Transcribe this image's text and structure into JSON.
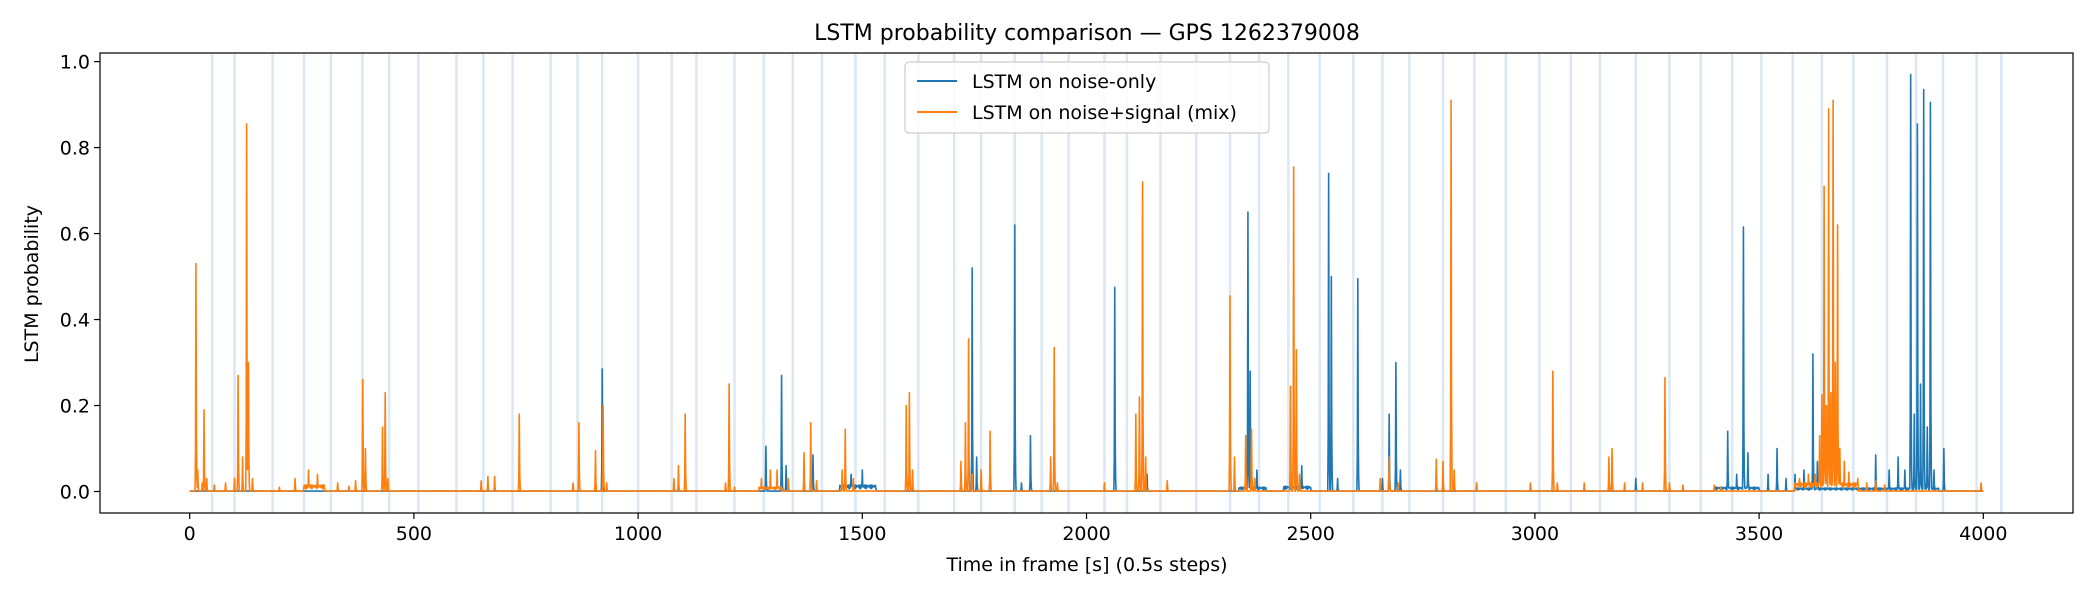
{
  "chart_data": {
    "type": "line",
    "title": "LSTM probability comparison — GPS 1262379008",
    "xlabel": "Time in frame [s] (0.5s steps)",
    "ylabel": "LSTM probability",
    "xlim": [
      -200,
      4200
    ],
    "ylim": [
      -0.05,
      1.02
    ],
    "x_ticks": [
      0,
      500,
      1000,
      1500,
      2000,
      2500,
      3000,
      3500,
      4000
    ],
    "x_tick_labels": [
      "0",
      "500",
      "1000",
      "1500",
      "2000",
      "2500",
      "3000",
      "3500",
      "4000"
    ],
    "y_ticks": [
      0.0,
      0.2,
      0.4,
      0.6,
      0.8,
      1.0
    ],
    "y_tick_labels": [
      "0.0",
      "0.2",
      "0.4",
      "0.6",
      "0.8",
      "1.0"
    ],
    "grid": false,
    "legend_position": "top-center",
    "x_range": [
      0,
      4000
    ],
    "x_step": 1,
    "baseline": 0.001,
    "shaded_bands_x": [
      50,
      100,
      185,
      255,
      315,
      385,
      445,
      510,
      595,
      655,
      720,
      805,
      865,
      920,
      1000,
      1075,
      1130,
      1215,
      1280,
      1345,
      1410,
      1485,
      1550,
      1625,
      1705,
      1765,
      1840,
      1900,
      1960,
      2040,
      2090,
      2165,
      2245,
      2320,
      2385,
      2450,
      2520,
      2595,
      2660,
      2720,
      2795,
      2865,
      2935,
      3010,
      3080,
      3145,
      3225,
      3300,
      3370,
      3440,
      3505,
      3575,
      3640,
      3710,
      3785,
      3850,
      3910,
      3985,
      4040
    ],
    "band_color": "#dbe7f2",
    "series": [
      {
        "name": "LSTM on noise-only",
        "color": "#1f77b4",
        "peaks": [
          [
            920,
            0.285
          ],
          [
            1285,
            0.105
          ],
          [
            1320,
            0.27
          ],
          [
            1330,
            0.06
          ],
          [
            1390,
            0.085
          ],
          [
            1475,
            0.04
          ],
          [
            1500,
            0.05
          ],
          [
            1745,
            0.52
          ],
          [
            1755,
            0.08
          ],
          [
            1840,
            0.62
          ],
          [
            1855,
            0.02
          ],
          [
            1875,
            0.13
          ],
          [
            2063,
            0.475
          ],
          [
            2135,
            0.04
          ],
          [
            2360,
            0.65
          ],
          [
            2365,
            0.28
          ],
          [
            2380,
            0.05
          ],
          [
            2480,
            0.06
          ],
          [
            2540,
            0.74
          ],
          [
            2546,
            0.5
          ],
          [
            2560,
            0.03
          ],
          [
            2605,
            0.495
          ],
          [
            2660,
            0.03
          ],
          [
            2675,
            0.18
          ],
          [
            2690,
            0.3
          ],
          [
            2700,
            0.05
          ],
          [
            3225,
            0.03
          ],
          [
            3430,
            0.14
          ],
          [
            3450,
            0.04
          ],
          [
            3465,
            0.615
          ],
          [
            3475,
            0.09
          ],
          [
            3520,
            0.04
          ],
          [
            3540,
            0.1
          ],
          [
            3560,
            0.03
          ],
          [
            3580,
            0.04
          ],
          [
            3600,
            0.05
          ],
          [
            3620,
            0.32
          ],
          [
            3630,
            0.07
          ],
          [
            3760,
            0.085
          ],
          [
            3790,
            0.05
          ],
          [
            3810,
            0.08
          ],
          [
            3825,
            0.05
          ],
          [
            3838,
            0.97
          ],
          [
            3846,
            0.18
          ],
          [
            3853,
            0.855
          ],
          [
            3860,
            0.25
          ],
          [
            3867,
            0.935
          ],
          [
            3875,
            0.15
          ],
          [
            3882,
            0.905
          ],
          [
            3890,
            0.05
          ],
          [
            3912,
            0.1
          ]
        ],
        "floor": [
          [
            1450,
            1530,
            0.015
          ],
          [
            2340,
            2400,
            0.01
          ],
          [
            2440,
            2500,
            0.012
          ],
          [
            3400,
            3500,
            0.01
          ],
          [
            3580,
            3900,
            0.008
          ]
        ]
      },
      {
        "name": "LSTM on noise+signal (mix)",
        "color": "#ff7f0e",
        "peaks": [
          [
            14,
            0.53
          ],
          [
            18,
            0.05
          ],
          [
            28,
            0.02
          ],
          [
            32,
            0.19
          ],
          [
            38,
            0.03
          ],
          [
            55,
            0.015
          ],
          [
            80,
            0.02
          ],
          [
            100,
            0.03
          ],
          [
            108,
            0.27
          ],
          [
            118,
            0.08
          ],
          [
            127,
            0.855
          ],
          [
            131,
            0.3
          ],
          [
            140,
            0.03
          ],
          [
            200,
            0.01
          ],
          [
            235,
            0.03
          ],
          [
            265,
            0.05
          ],
          [
            285,
            0.04
          ],
          [
            300,
            0.015
          ],
          [
            330,
            0.02
          ],
          [
            355,
            0.012
          ],
          [
            370,
            0.025
          ],
          [
            386,
            0.26
          ],
          [
            392,
            0.1
          ],
          [
            430,
            0.15
          ],
          [
            436,
            0.23
          ],
          [
            442,
            0.03
          ],
          [
            650,
            0.025
          ],
          [
            665,
            0.035
          ],
          [
            680,
            0.035
          ],
          [
            735,
            0.18
          ],
          [
            855,
            0.02
          ],
          [
            868,
            0.16
          ],
          [
            905,
            0.095
          ],
          [
            922,
            0.2
          ],
          [
            930,
            0.02
          ],
          [
            1080,
            0.03
          ],
          [
            1090,
            0.06
          ],
          [
            1105,
            0.18
          ],
          [
            1195,
            0.02
          ],
          [
            1203,
            0.25
          ],
          [
            1215,
            0.01
          ],
          [
            1275,
            0.03
          ],
          [
            1295,
            0.05
          ],
          [
            1310,
            0.05
          ],
          [
            1335,
            0.03
          ],
          [
            1370,
            0.09
          ],
          [
            1385,
            0.16
          ],
          [
            1398,
            0.025
          ],
          [
            1455,
            0.05
          ],
          [
            1462,
            0.145
          ],
          [
            1480,
            0.03
          ],
          [
            1598,
            0.2
          ],
          [
            1605,
            0.23
          ],
          [
            1612,
            0.05
          ],
          [
            1720,
            0.07
          ],
          [
            1730,
            0.16
          ],
          [
            1737,
            0.355
          ],
          [
            1745,
            0.04
          ],
          [
            1765,
            0.05
          ],
          [
            1785,
            0.14
          ],
          [
            1920,
            0.08
          ],
          [
            1928,
            0.335
          ],
          [
            1935,
            0.02
          ],
          [
            2040,
            0.02
          ],
          [
            2110,
            0.18
          ],
          [
            2118,
            0.22
          ],
          [
            2125,
            0.72
          ],
          [
            2132,
            0.08
          ],
          [
            2180,
            0.025
          ],
          [
            2320,
            0.455
          ],
          [
            2330,
            0.08
          ],
          [
            2355,
            0.13
          ],
          [
            2368,
            0.145
          ],
          [
            2375,
            0.03
          ],
          [
            2455,
            0.245
          ],
          [
            2462,
            0.755
          ],
          [
            2468,
            0.33
          ],
          [
            2475,
            0.04
          ],
          [
            2655,
            0.03
          ],
          [
            2675,
            0.08
          ],
          [
            2695,
            0.02
          ],
          [
            2780,
            0.075
          ],
          [
            2795,
            0.07
          ],
          [
            2813,
            0.91
          ],
          [
            2820,
            0.05
          ],
          [
            2870,
            0.02
          ],
          [
            2990,
            0.02
          ],
          [
            3040,
            0.28
          ],
          [
            3050,
            0.02
          ],
          [
            3110,
            0.02
          ],
          [
            3165,
            0.08
          ],
          [
            3172,
            0.1
          ],
          [
            3200,
            0.02
          ],
          [
            3240,
            0.02
          ],
          [
            3290,
            0.265
          ],
          [
            3300,
            0.02
          ],
          [
            3330,
            0.015
          ],
          [
            3400,
            0.015
          ],
          [
            3415,
            0.01
          ],
          [
            3590,
            0.03
          ],
          [
            3610,
            0.04
          ],
          [
            3625,
            0.04
          ],
          [
            3635,
            0.13
          ],
          [
            3640,
            0.225
          ],
          [
            3645,
            0.71
          ],
          [
            3650,
            0.2
          ],
          [
            3655,
            0.89
          ],
          [
            3660,
            0.23
          ],
          [
            3665,
            0.91
          ],
          [
            3670,
            0.3
          ],
          [
            3675,
            0.62
          ],
          [
            3680,
            0.1
          ],
          [
            3690,
            0.07
          ],
          [
            3700,
            0.045
          ],
          [
            3720,
            0.03
          ],
          [
            3740,
            0.02
          ],
          [
            3760,
            0.025
          ],
          [
            3780,
            0.015
          ],
          [
            3995,
            0.02
          ]
        ],
        "floor": [
          [
            255,
            300,
            0.015
          ],
          [
            1270,
            1320,
            0.01
          ],
          [
            3580,
            3720,
            0.02
          ]
        ]
      }
    ]
  }
}
